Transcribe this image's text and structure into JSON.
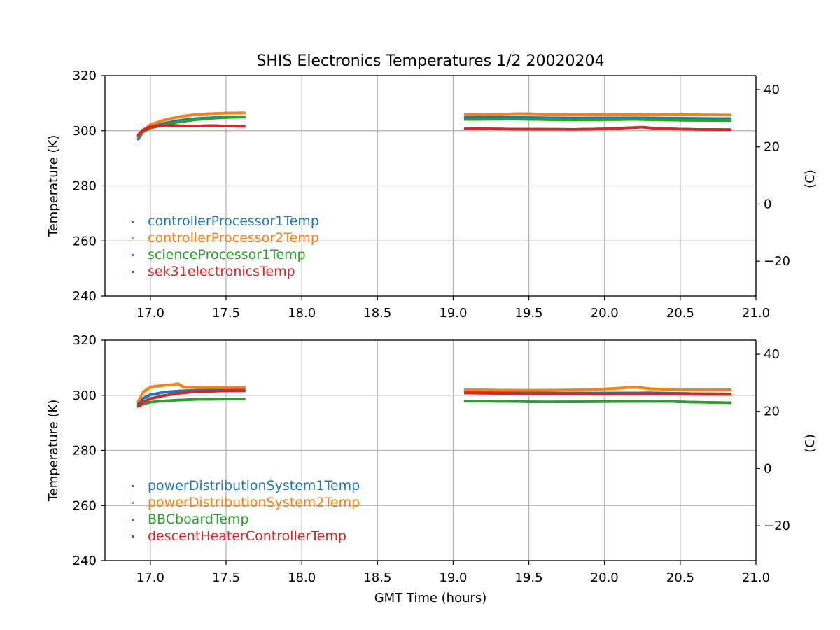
{
  "figure": {
    "title": "SHIS Electronics Temperatures 1/2 20020204",
    "xlabel": "GMT Time (hours)"
  },
  "chart_data": [
    {
      "type": "scatter",
      "title": "SHIS Electronics Temperatures 1/2 20020204",
      "xlabel": "",
      "ylabel": "Temperature (K)",
      "y2label": "(C)",
      "xlim": [
        16.7,
        21.0
      ],
      "ylim": [
        240,
        320
      ],
      "xticks": [
        "17.0",
        "17.5",
        "18.0",
        "18.5",
        "19.0",
        "19.5",
        "20.0",
        "20.5",
        "21.0"
      ],
      "yticks": [
        "240",
        "260",
        "280",
        "300",
        "320"
      ],
      "y2ticks": [
        "40",
        "20",
        "0",
        "−20"
      ],
      "grid": true,
      "legend": "lower-left",
      "series": [
        {
          "name": "controllerProcessor1Temp",
          "color": "#1f77b4",
          "segments": [
            [
              [
                16.92,
                297.0
              ],
              [
                16.95,
                299.5
              ],
              [
                17.0,
                301.3
              ],
              [
                17.1,
                302.8
              ],
              [
                17.2,
                303.8
              ],
              [
                17.3,
                304.4
              ],
              [
                17.4,
                304.7
              ],
              [
                17.5,
                304.9
              ],
              [
                17.62,
                305.0
              ]
            ],
            [
              [
                19.08,
                304.8
              ],
              [
                19.4,
                304.8
              ],
              [
                19.8,
                304.6
              ],
              [
                20.2,
                304.7
              ],
              [
                20.5,
                304.5
              ],
              [
                20.83,
                304.4
              ]
            ]
          ]
        },
        {
          "name": "controllerProcessor2Temp",
          "color": "#ff7f0e",
          "segments": [
            [
              [
                16.92,
                298.0
              ],
              [
                16.95,
                300.0
              ],
              [
                17.0,
                302.2
              ],
              [
                17.1,
                304.0
              ],
              [
                17.2,
                305.2
              ],
              [
                17.3,
                305.9
              ],
              [
                17.4,
                306.2
              ],
              [
                17.5,
                306.4
              ],
              [
                17.62,
                306.5
              ]
            ],
            [
              [
                19.08,
                305.9
              ],
              [
                19.3,
                306.0
              ],
              [
                19.45,
                306.2
              ],
              [
                19.8,
                305.8
              ],
              [
                20.2,
                306.0
              ],
              [
                20.5,
                305.8
              ],
              [
                20.83,
                305.7
              ]
            ]
          ]
        },
        {
          "name": "scienceProcessor1Temp",
          "color": "#2ca02c",
          "segments": [
            [
              [
                16.92,
                298.2
              ],
              [
                16.95,
                299.6
              ],
              [
                17.0,
                301.0
              ],
              [
                17.1,
                302.3
              ],
              [
                17.2,
                303.3
              ],
              [
                17.3,
                304.0
              ],
              [
                17.4,
                304.5
              ],
              [
                17.5,
                304.8
              ],
              [
                17.62,
                305.0
              ]
            ],
            [
              [
                19.08,
                304.1
              ],
              [
                19.4,
                304.2
              ],
              [
                19.8,
                303.9
              ],
              [
                20.2,
                304.1
              ],
              [
                20.5,
                303.8
              ],
              [
                20.83,
                303.7
              ]
            ]
          ]
        },
        {
          "name": "sek31electronicsTemp",
          "color": "#d62728",
          "segments": [
            [
              [
                16.92,
                298.5
              ],
              [
                16.95,
                300.2
              ],
              [
                17.0,
                301.4
              ],
              [
                17.1,
                302.0
              ],
              [
                17.2,
                301.8
              ],
              [
                17.3,
                301.7
              ],
              [
                17.4,
                301.9
              ],
              [
                17.5,
                301.7
              ],
              [
                17.62,
                301.6
              ]
            ],
            [
              [
                19.08,
                300.8
              ],
              [
                19.4,
                300.6
              ],
              [
                19.8,
                300.5
              ],
              [
                20.0,
                300.7
              ],
              [
                20.25,
                301.3
              ],
              [
                20.35,
                300.8
              ],
              [
                20.6,
                300.5
              ],
              [
                20.83,
                300.4
              ]
            ]
          ]
        }
      ]
    },
    {
      "type": "scatter",
      "title": "",
      "xlabel": "GMT Time (hours)",
      "ylabel": "Temperature (K)",
      "y2label": "(C)",
      "xlim": [
        16.7,
        21.0
      ],
      "ylim": [
        240,
        320
      ],
      "xticks": [
        "17.0",
        "17.5",
        "18.0",
        "18.5",
        "19.0",
        "19.5",
        "20.0",
        "20.5",
        "21.0"
      ],
      "yticks": [
        "240",
        "260",
        "280",
        "300",
        "320"
      ],
      "y2ticks": [
        "40",
        "20",
        "0",
        "−20"
      ],
      "grid": true,
      "legend": "lower-left",
      "series": [
        {
          "name": "powerDistributionSystem1Temp",
          "color": "#1f77b4",
          "segments": [
            [
              [
                16.92,
                297.0
              ],
              [
                16.95,
                298.8
              ],
              [
                17.0,
                300.2
              ],
              [
                17.1,
                301.2
              ],
              [
                17.2,
                301.6
              ],
              [
                17.3,
                301.8
              ],
              [
                17.5,
                301.9
              ],
              [
                17.62,
                301.9
              ]
            ],
            [
              [
                19.08,
                301.0
              ],
              [
                19.5,
                300.9
              ],
              [
                20.0,
                300.8
              ],
              [
                20.3,
                300.9
              ],
              [
                20.6,
                300.6
              ],
              [
                20.83,
                300.5
              ]
            ]
          ]
        },
        {
          "name": "powerDistributionSystem2Temp",
          "color": "#ff7f0e",
          "segments": [
            [
              [
                16.92,
                297.8
              ],
              [
                16.95,
                301.0
              ],
              [
                17.0,
                303.0
              ],
              [
                17.05,
                303.4
              ],
              [
                17.15,
                303.9
              ],
              [
                17.18,
                304.2
              ],
              [
                17.22,
                303.0
              ],
              [
                17.3,
                302.8
              ],
              [
                17.5,
                302.9
              ],
              [
                17.62,
                302.8
              ]
            ],
            [
              [
                19.08,
                302.0
              ],
              [
                19.5,
                301.8
              ],
              [
                19.9,
                302.0
              ],
              [
                20.1,
                302.6
              ],
              [
                20.2,
                303.0
              ],
              [
                20.3,
                302.4
              ],
              [
                20.5,
                302.0
              ],
              [
                20.83,
                302.0
              ]
            ]
          ]
        },
        {
          "name": "BBCboardTemp",
          "color": "#2ca02c",
          "segments": [
            [
              [
                16.92,
                296.0
              ],
              [
                16.95,
                296.8
              ],
              [
                17.0,
                297.5
              ],
              [
                17.1,
                298.0
              ],
              [
                17.2,
                298.3
              ],
              [
                17.3,
                298.5
              ],
              [
                17.5,
                298.6
              ],
              [
                17.62,
                298.6
              ]
            ],
            [
              [
                19.08,
                297.9
              ],
              [
                19.3,
                297.8
              ],
              [
                19.6,
                297.6
              ],
              [
                20.0,
                297.7
              ],
              [
                20.4,
                297.8
              ],
              [
                20.6,
                297.5
              ],
              [
                20.83,
                297.3
              ]
            ]
          ]
        },
        {
          "name": "descentHeaterControllerTemp",
          "color": "#d62728",
          "segments": [
            [
              [
                16.92,
                296.0
              ],
              [
                16.95,
                297.5
              ],
              [
                17.0,
                298.8
              ],
              [
                17.1,
                300.0
              ],
              [
                17.2,
                300.8
              ],
              [
                17.3,
                301.3
              ],
              [
                17.5,
                301.6
              ],
              [
                17.62,
                301.6
              ]
            ],
            [
              [
                19.08,
                300.8
              ],
              [
                19.5,
                300.6
              ],
              [
                20.0,
                300.5
              ],
              [
                20.4,
                300.6
              ],
              [
                20.6,
                300.4
              ],
              [
                20.83,
                300.3
              ]
            ]
          ]
        }
      ]
    }
  ]
}
